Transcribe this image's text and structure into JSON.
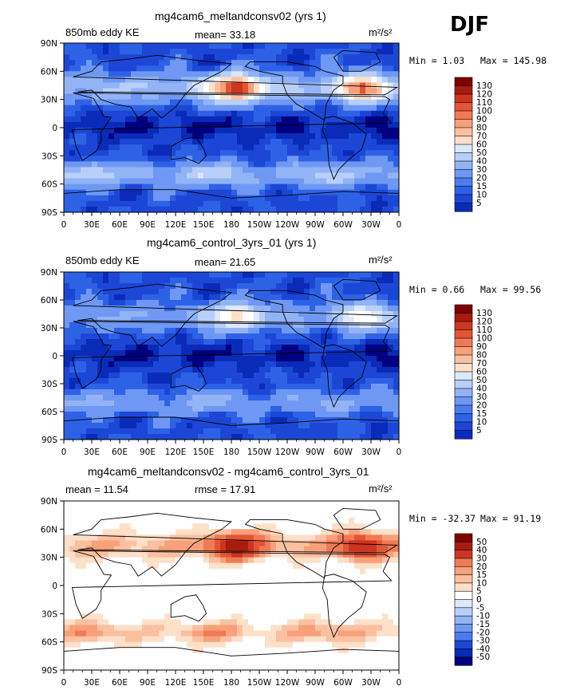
{
  "season": "DJF",
  "colors": {
    "ke_levels": [
      "#000080",
      "#0a2bb8",
      "#1c47d6",
      "#2e62e6",
      "#4a7df0",
      "#6e98f3",
      "#92b3f6",
      "#b8cff9",
      "#dce8fc",
      "#ffffff",
      "#fde0c8",
      "#fbc0a0",
      "#f7a07a",
      "#f07a55",
      "#e35535",
      "#cc3520",
      "#a81c10",
      "#800000"
    ],
    "diff_levels": [
      "#000080",
      "#0a2bb8",
      "#1c47d6",
      "#2e62e6",
      "#4a7df0",
      "#6e98f3",
      "#92b3f6",
      "#b8cff9",
      "#dce8fc",
      "#ffffff",
      "#ffffff",
      "#fde0c8",
      "#fbc0a0",
      "#f7a07a",
      "#f07a55",
      "#e35535",
      "#cc3520",
      "#a81c10",
      "#800000"
    ]
  },
  "chart_data": [
    {
      "type": "heatmap",
      "title": "mg4cam6_meltandconsv02 (yrs 1)",
      "left_label": "850mb eddy KE",
      "center_label": "mean=  33.18",
      "units": "m²/s²",
      "mean": 33.18,
      "min_label": "Min =   1.03",
      "max_label": "Max = 145.98",
      "min": 1.03,
      "max": 145.98,
      "colorbar_labels": [
        "130",
        "120",
        "110",
        "100",
        "90",
        "80",
        "70",
        "60",
        "50",
        "40",
        "30",
        "20",
        "15",
        "10",
        "5"
      ],
      "x_ticks": [
        "0",
        "30E",
        "60E",
        "90E",
        "120E",
        "150E",
        "180",
        "150W",
        "120W",
        "90W",
        "60W",
        "30W",
        "0"
      ],
      "y_ticks": [
        "90N",
        "60N",
        "30N",
        "0",
        "30S",
        "60S",
        "90S"
      ],
      "xlim": [
        0,
        360
      ],
      "ylim": [
        -90,
        90
      ]
    },
    {
      "type": "heatmap",
      "title": "mg4cam6_control_3yrs_01 (yrs 1)",
      "left_label": "850mb eddy KE",
      "center_label": "mean=  21.65",
      "units": "m²/s²",
      "mean": 21.65,
      "min_label": "Min =   0.66",
      "max_label": "Max =  99.56",
      "min": 0.66,
      "max": 99.56,
      "colorbar_labels": [
        "130",
        "120",
        "110",
        "100",
        "90",
        "80",
        "70",
        "60",
        "50",
        "40",
        "30",
        "20",
        "15",
        "10",
        "5"
      ],
      "x_ticks": [
        "0",
        "30E",
        "60E",
        "90E",
        "120E",
        "150E",
        "180",
        "150W",
        "120W",
        "90W",
        "60W",
        "30W",
        "0"
      ],
      "y_ticks": [
        "90N",
        "60N",
        "30N",
        "0",
        "30S",
        "60S",
        "90S"
      ],
      "xlim": [
        0,
        360
      ],
      "ylim": [
        -90,
        90
      ]
    },
    {
      "type": "heatmap",
      "title": "mg4cam6_meltandconsv02 - mg4cam6_control_3yrs_01",
      "left_label": "mean =  11.54",
      "center_label": "rmse =  17.91",
      "units": "m²/s²",
      "mean": 11.54,
      "rmse": 17.91,
      "min_label": "Min = -32.37",
      "max_label": "Max =  91.19",
      "min": -32.37,
      "max": 91.19,
      "colorbar_labels": [
        "50",
        "40",
        "30",
        "20",
        "15",
        "10",
        "5",
        "0",
        "-5",
        "-10",
        "-15",
        "-20",
        "-30",
        "-40",
        "-50"
      ],
      "x_ticks": [
        "0",
        "30E",
        "60E",
        "90E",
        "120E",
        "150E",
        "180",
        "150W",
        "120W",
        "90W",
        "60W",
        "30W",
        "0"
      ],
      "y_ticks": [
        "90N",
        "60N",
        "30N",
        "0",
        "30S",
        "60S",
        "90S"
      ],
      "xlim": [
        0,
        360
      ],
      "ylim": [
        -90,
        90
      ]
    }
  ]
}
